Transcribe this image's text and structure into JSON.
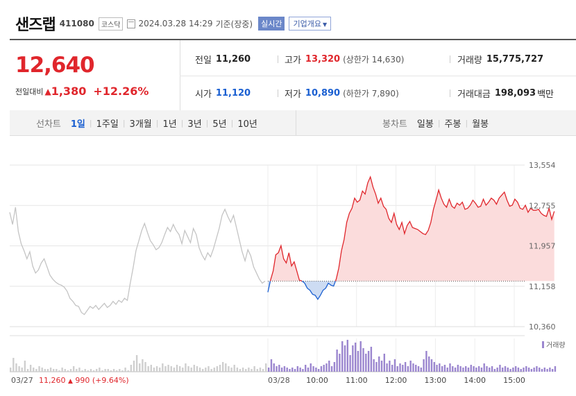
{
  "header": {
    "name": "샌즈랩",
    "code": "411080",
    "market": "코스닥",
    "datetime": "2024.03.28 14:29",
    "basis": "기준(장중)",
    "realtime_label": "실시간",
    "company_label": "기업개요"
  },
  "price": {
    "current": "12,640",
    "change_label": "전일대비",
    "change": "1,380",
    "pct": "+12.26%"
  },
  "stats": {
    "prev_label": "전일",
    "prev": "11,260",
    "open_label": "시가",
    "open": "11,120",
    "high_label": "고가",
    "high": "13,320",
    "upper_limit": "(상한가 14,630)",
    "low_label": "저가",
    "low": "10,890",
    "lower_limit": "(하한가 7,890)",
    "volume_label": "거래량",
    "volume": "15,775,727",
    "amount_label": "거래대금",
    "amount": "198,093",
    "amount_unit": "백만"
  },
  "tabs": {
    "line_label": "선차트",
    "line_tabs": [
      "1일",
      "1주일",
      "3개월",
      "1년",
      "3년",
      "5년",
      "10년"
    ],
    "active_line_tab": "1일",
    "candle_label": "봉차트",
    "candle_tabs": [
      "일봉",
      "주봉",
      "월봉"
    ]
  },
  "colors": {
    "up": "#e0262c",
    "down": "#1a5fd1",
    "prev_day_line": "#c4c4c4",
    "up_fill": "#fbdcdc",
    "down_fill": "#cddcf3",
    "volume_today": "#9b86cf",
    "volume_prev": "#cfcfcf"
  },
  "chart_data": {
    "type": "line",
    "y_ticks": [
      "13,554",
      "12,755",
      "11,957",
      "11,158",
      "10,360"
    ],
    "x_ticks": [
      "10:00",
      "11:00",
      "12:00",
      "13:00",
      "14:00",
      "15:00"
    ],
    "day_labels": [
      "03/27",
      "03/28"
    ],
    "ylim": [
      10360,
      13554
    ],
    "baseline": 11260,
    "prev_day": {
      "date": "03/27",
      "close": "11,260",
      "change": "990",
      "pct": "(+9.64%)",
      "values": [
        12620,
        12380,
        12720,
        12240,
        12000,
        11860,
        11700,
        11840,
        11560,
        11420,
        11480,
        11620,
        11700,
        11540,
        11380,
        11300,
        11240,
        11200,
        11180,
        11140,
        11060,
        10920,
        10860,
        10780,
        10760,
        10640,
        10600,
        10680,
        10760,
        10720,
        10780,
        10700,
        10760,
        10820,
        10740,
        10780,
        10860,
        10800,
        10880,
        10840,
        10920,
        10880,
        11220,
        11520,
        11860,
        12060,
        12260,
        12400,
        12220,
        12060,
        11980,
        11880,
        11920,
        12020,
        12180,
        12320,
        12240,
        12380,
        12260,
        12180,
        12000,
        12260,
        12140,
        12020,
        12300,
        12180,
        11920,
        11780,
        11680,
        11820,
        11740,
        11900,
        12100,
        12300,
        12560,
        12680,
        12540,
        12420,
        12560,
        12320,
        12080,
        11840,
        11660,
        11880,
        11760,
        11540,
        11420,
        11300,
        11220,
        11260
      ]
    },
    "today": {
      "date": "03/28",
      "values": [
        11040,
        11280,
        11460,
        11780,
        11820,
        11960,
        11700,
        11620,
        11820,
        11560,
        11640,
        11460,
        11280,
        11260,
        11220,
        11120,
        11080,
        11000,
        10980,
        10900,
        10980,
        11080,
        11120,
        11220,
        11180,
        11160,
        11300,
        11520,
        11860,
        12080,
        12420,
        12600,
        12700,
        12900,
        12820,
        12860,
        13040,
        12980,
        13200,
        13320,
        13120,
        12980,
        12800,
        12900,
        12740,
        12680,
        12500,
        12420,
        12600,
        12380,
        12280,
        12420,
        12200,
        12360,
        12440,
        12320,
        12300,
        12280,
        12240,
        12200,
        12180,
        12260,
        12420,
        12680,
        12860,
        13060,
        12900,
        12780,
        12720,
        12880,
        12740,
        12700,
        12800,
        12760,
        12820,
        12680,
        12700,
        12760,
        12860,
        12800,
        12720,
        12740,
        12880,
        12760,
        12820,
        12900,
        12860,
        12780,
        12900,
        12960,
        13020,
        12860,
        12740,
        12760,
        12880,
        12820,
        12700,
        12680,
        12760,
        12620,
        12700,
        12660,
        12660,
        12680,
        12600,
        12560,
        12540,
        12700,
        12480,
        12640
      ]
    },
    "volume_label": "거래량",
    "volume_prev": [
      3,
      10,
      6,
      4,
      3,
      8,
      2,
      5,
      3,
      2,
      4,
      3,
      2,
      2,
      3,
      2,
      2,
      1,
      3,
      2,
      1,
      2,
      4,
      2,
      3,
      1,
      2,
      1,
      2,
      1,
      2,
      3,
      1,
      2,
      2,
      1,
      2,
      1,
      2,
      1,
      3,
      1,
      5,
      8,
      12,
      6,
      9,
      7,
      4,
      5,
      3,
      4,
      3,
      6,
      4,
      5,
      4,
      3,
      5,
      4,
      3,
      6,
      4,
      3,
      5,
      4,
      3,
      2,
      3,
      4,
      2,
      3,
      4,
      5,
      7,
      6,
      4,
      3,
      5,
      3,
      2,
      3,
      2,
      3,
      2,
      4,
      2,
      3,
      2,
      6
    ],
    "volume_today": [
      3,
      9,
      6,
      4,
      5,
      3,
      4,
      3,
      2,
      3,
      2,
      4,
      3,
      2,
      5,
      3,
      6,
      4,
      3,
      2,
      4,
      5,
      6,
      8,
      4,
      7,
      16,
      13,
      22,
      19,
      23,
      12,
      19,
      21,
      15,
      22,
      17,
      13,
      15,
      18,
      9,
      7,
      11,
      8,
      13,
      6,
      8,
      5,
      9,
      4,
      6,
      5,
      7,
      4,
      8,
      6,
      5,
      4,
      3,
      9,
      15,
      11,
      9,
      7,
      5,
      6,
      4,
      5,
      3,
      6,
      4,
      3,
      5,
      4,
      3,
      4,
      3,
      5,
      4,
      3,
      4,
      3,
      6,
      4,
      3,
      4,
      2,
      3,
      5,
      3,
      4,
      3,
      2,
      3,
      4,
      3,
      2,
      3,
      4,
      3,
      2,
      3,
      4,
      3,
      2,
      3,
      2,
      3,
      2,
      4
    ]
  }
}
